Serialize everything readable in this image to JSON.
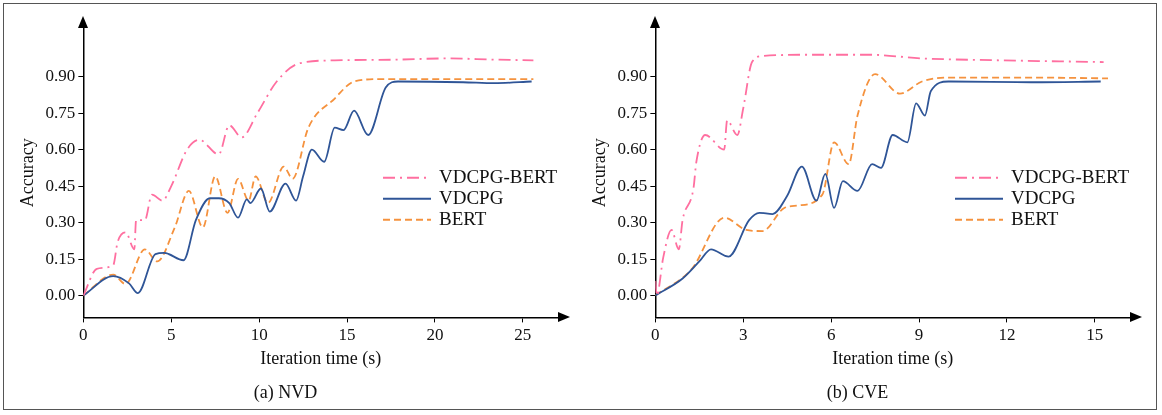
{
  "chart_data": [
    {
      "type": "line",
      "title": "(a) NVD",
      "xlabel": "Iteration time (s)",
      "ylabel": "Accuracy",
      "xlim": [
        0,
        27
      ],
      "xticks": [
        0,
        5,
        10,
        15,
        20,
        25
      ],
      "ylim": [
        -0.09,
        1.1
      ],
      "yticks": [
        {
          "value": 0,
          "label": "0.00"
        },
        {
          "value": 0.15,
          "label": "0.15"
        },
        {
          "value": 0.3,
          "label": "0.30"
        },
        {
          "value": 0.45,
          "label": "0.45"
        },
        {
          "value": 0.6,
          "label": "0.60"
        },
        {
          "value": 0.75,
          "label": "0.75"
        },
        {
          "value": 0.9,
          "label": "0.90"
        }
      ],
      "grid": false,
      "legend": "right",
      "marker": "none",
      "series": [
        {
          "name": "VDCPG-BERT",
          "color": "#ff6fa0",
          "line_style": "dashdot",
          "x": [
            0,
            0.77,
            1.7,
            1.95,
            2.4,
            2.9,
            3.0,
            3.5,
            3.9,
            4.5,
            5,
            5.9,
            6.6,
            7.7,
            8.3,
            9.0,
            9.9,
            11,
            12.3,
            14.3,
            17.9,
            20.7,
            23.4,
            25.6
          ],
          "values": [
            0,
            0.11,
            0.125,
            0.22,
            0.26,
            0.19,
            0.31,
            0.31,
            0.415,
            0.39,
            0.45,
            0.6,
            0.64,
            0.58,
            0.7,
            0.65,
            0.75,
            0.88,
            0.955,
            0.967,
            0.97,
            0.975,
            0.97,
            0.967
          ]
        },
        {
          "name": "VDCPG",
          "color": "#2f5597",
          "line_style": "solid",
          "x": [
            0,
            1.7,
            2.6,
            3.1,
            4.1,
            4.6,
            5.7,
            6.4,
            7.2,
            7.7,
            8.3,
            8.8,
            9.3,
            9.5,
            10.1,
            10.6,
            11.5,
            12.1,
            12.5,
            13.0,
            13.7,
            14.3,
            14.8,
            15.4,
            16.2,
            17.2,
            17.9,
            21.6,
            23.4,
            25.5
          ],
          "values": [
            0,
            0.08,
            0.05,
            0.01,
            0.17,
            0.175,
            0.145,
            0.31,
            0.4,
            0.4,
            0.38,
            0.32,
            0.395,
            0.38,
            0.44,
            0.345,
            0.46,
            0.39,
            0.49,
            0.6,
            0.55,
            0.69,
            0.68,
            0.76,
            0.66,
            0.855,
            0.88,
            0.877,
            0.873,
            0.88
          ]
        },
        {
          "name": "BERT",
          "color": "#f5923e",
          "line_style": "dashed",
          "x": [
            0,
            1.7,
            2.4,
            3.5,
            4.2,
            5.2,
            6.0,
            6.8,
            7.5,
            8.2,
            8.8,
            9.4,
            9.8,
            10.5,
            11.4,
            11.9,
            12.8,
            14.3,
            15.4,
            17.0,
            19.8,
            25.6
          ],
          "values": [
            0,
            0.086,
            0.047,
            0.19,
            0.14,
            0.28,
            0.43,
            0.28,
            0.49,
            0.34,
            0.48,
            0.39,
            0.49,
            0.38,
            0.53,
            0.48,
            0.69,
            0.81,
            0.88,
            0.89,
            0.89,
            0.89
          ]
        }
      ]
    },
    {
      "type": "line",
      "title": "(b) CVE",
      "xlabel": "Iteration time (s)",
      "ylabel": "Accuracy",
      "xlim": [
        0,
        16.2
      ],
      "xticks": [
        0,
        3,
        6,
        9,
        12,
        15
      ],
      "ylim": [
        -0.09,
        1.1
      ],
      "yticks": [
        {
          "value": 0,
          "label": "0.00"
        },
        {
          "value": 0.15,
          "label": "0.15"
        },
        {
          "value": 0.3,
          "label": "0.30"
        },
        {
          "value": 0.45,
          "label": "0.45"
        },
        {
          "value": 0.6,
          "label": "0.60"
        },
        {
          "value": 0.75,
          "label": "0.75"
        },
        {
          "value": 0.9,
          "label": "0.90"
        }
      ],
      "grid": false,
      "legend": "right",
      "marker": "none",
      "series": [
        {
          "name": "VDCPG-BERT",
          "color": "#ff6fa0",
          "line_style": "dashdot",
          "x": [
            0,
            0.05,
            0.27,
            0.55,
            0.8,
            0.93,
            1.3,
            1.4,
            1.7,
            2.35,
            2.45,
            2.8,
            3.0,
            3.3,
            3.66,
            5.3,
            7.3,
            9.1,
            11.8,
            15.3
          ],
          "values": [
            0.06,
            0,
            0.157,
            0.27,
            0.19,
            0.31,
            0.44,
            0.55,
            0.66,
            0.6,
            0.72,
            0.66,
            0.77,
            0.96,
            0.985,
            0.99,
            0.99,
            0.975,
            0.967,
            0.96
          ]
        },
        {
          "name": "VDCPG",
          "color": "#2f5597",
          "line_style": "solid",
          "x": [
            0,
            0.93,
            1.5,
            1.9,
            2.5,
            3.2,
            3.55,
            4.0,
            4.5,
            5.0,
            5.5,
            5.8,
            6.1,
            6.4,
            6.9,
            7.4,
            7.7,
            8.1,
            8.6,
            8.9,
            9.2,
            9.4,
            10.0,
            12.9,
            15.2
          ],
          "values": [
            0,
            0.07,
            0.14,
            0.19,
            0.16,
            0.31,
            0.34,
            0.335,
            0.41,
            0.53,
            0.39,
            0.5,
            0.36,
            0.47,
            0.43,
            0.54,
            0.525,
            0.66,
            0.63,
            0.79,
            0.74,
            0.84,
            0.88,
            0.877,
            0.88
          ]
        },
        {
          "name": "BERT",
          "color": "#f5923e",
          "line_style": "dashed",
          "x": [
            0,
            1.25,
            2.35,
            3.1,
            3.66,
            4.4,
            4.86,
            5.7,
            6.1,
            6.6,
            6.9,
            7.5,
            8.35,
            9.1,
            10.0,
            12.9,
            15.45
          ],
          "values": [
            0,
            0.11,
            0.32,
            0.27,
            0.265,
            0.36,
            0.37,
            0.415,
            0.63,
            0.54,
            0.74,
            0.91,
            0.83,
            0.88,
            0.896,
            0.896,
            0.893
          ]
        }
      ]
    }
  ]
}
